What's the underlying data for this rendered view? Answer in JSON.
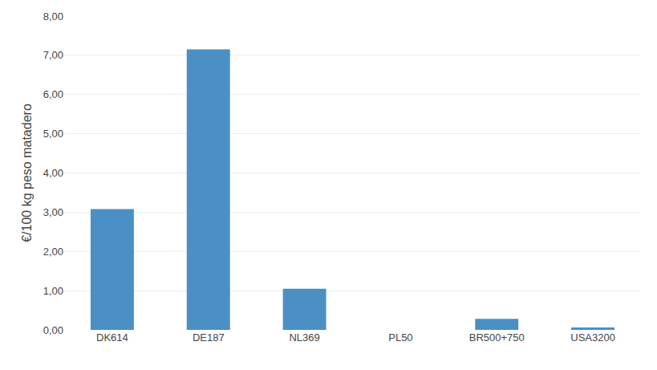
{
  "chart_data": {
    "type": "bar",
    "categories": [
      "DK614",
      "DE187",
      "NL369",
      "PL50",
      "BR500+750",
      "USA3200"
    ],
    "values": [
      3.08,
      7.15,
      1.05,
      0.0,
      0.28,
      0.06
    ],
    "color": "#4a90c4",
    "ylabel": "€/100 kg peso matadero",
    "ylim": [
      0,
      8.0
    ],
    "yticks": [
      {
        "value": 0.0,
        "label": "0,00"
      },
      {
        "value": 1.0,
        "label": "1,00"
      },
      {
        "value": 2.0,
        "label": "2,00"
      },
      {
        "value": 3.0,
        "label": "3,00"
      },
      {
        "value": 4.0,
        "label": "4,00"
      },
      {
        "value": 5.0,
        "label": "5,00"
      },
      {
        "value": 6.0,
        "label": "6,00"
      },
      {
        "value": 7.0,
        "label": "7,00"
      },
      {
        "value": 8.0,
        "label": "8,00"
      }
    ],
    "grid": true
  }
}
